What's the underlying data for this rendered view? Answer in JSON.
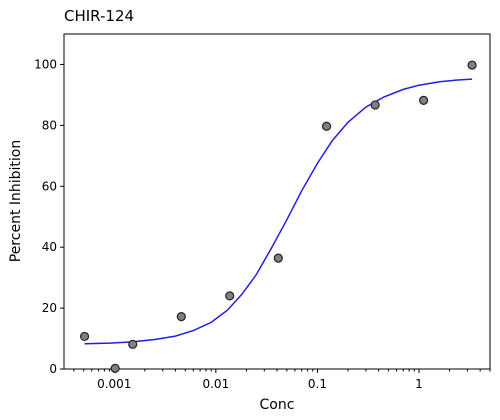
{
  "chart_data": {
    "type": "scatter",
    "title": "CHIR-124",
    "xlabel": "Conc",
    "ylabel": "Percent Inhibition",
    "x_scale": "log",
    "xlim": [
      0.00032,
      5.0
    ],
    "ylim": [
      0,
      110
    ],
    "x_ticks": [
      {
        "value": 0.001,
        "label": "0.001"
      },
      {
        "value": 0.01,
        "label": "0.01"
      },
      {
        "value": 0.1,
        "label": "0.1"
      },
      {
        "value": 1,
        "label": "1"
      }
    ],
    "y_ticks": [
      {
        "value": 0,
        "label": "0"
      },
      {
        "value": 20,
        "label": "20"
      },
      {
        "value": 40,
        "label": "40"
      },
      {
        "value": 60,
        "label": "60"
      },
      {
        "value": 80,
        "label": "80"
      },
      {
        "value": 100,
        "label": "100"
      }
    ],
    "grid": false,
    "legend": "none",
    "points": [
      {
        "x": 0.00051,
        "y": 10.7
      },
      {
        "x": 0.00102,
        "y": 0.2
      },
      {
        "x": 0.00152,
        "y": 8.1
      },
      {
        "x": 0.00457,
        "y": 17.2
      },
      {
        "x": 0.0137,
        "y": 24.0
      },
      {
        "x": 0.0412,
        "y": 36.4
      },
      {
        "x": 0.123,
        "y": 79.7
      },
      {
        "x": 0.37,
        "y": 86.7
      },
      {
        "x": 1.11,
        "y": 88.2
      },
      {
        "x": 3.33,
        "y": 99.8
      }
    ],
    "fit_curve": [
      {
        "x": 0.00051,
        "y": 8.3
      },
      {
        "x": 0.0009,
        "y": 8.5
      },
      {
        "x": 0.0015,
        "y": 8.9
      },
      {
        "x": 0.0025,
        "y": 9.7
      },
      {
        "x": 0.004,
        "y": 10.8
      },
      {
        "x": 0.006,
        "y": 12.6
      },
      {
        "x": 0.009,
        "y": 15.3
      },
      {
        "x": 0.013,
        "y": 19.3
      },
      {
        "x": 0.018,
        "y": 24.5
      },
      {
        "x": 0.025,
        "y": 31.0
      },
      {
        "x": 0.035,
        "y": 39.5
      },
      {
        "x": 0.05,
        "y": 49.0
      },
      {
        "x": 0.07,
        "y": 58.5
      },
      {
        "x": 0.1,
        "y": 67.5
      },
      {
        "x": 0.14,
        "y": 75.0
      },
      {
        "x": 0.2,
        "y": 81.0
      },
      {
        "x": 0.3,
        "y": 86.0
      },
      {
        "x": 0.45,
        "y": 89.3
      },
      {
        "x": 0.7,
        "y": 91.8
      },
      {
        "x": 1.0,
        "y": 93.2
      },
      {
        "x": 1.6,
        "y": 94.3
      },
      {
        "x": 2.4,
        "y": 94.9
      },
      {
        "x": 3.33,
        "y": 95.2
      }
    ],
    "colors": {
      "point_fill": "#808080",
      "point_edge": "#222222",
      "curve": "#1f1fe6",
      "axis": "#000000"
    }
  }
}
